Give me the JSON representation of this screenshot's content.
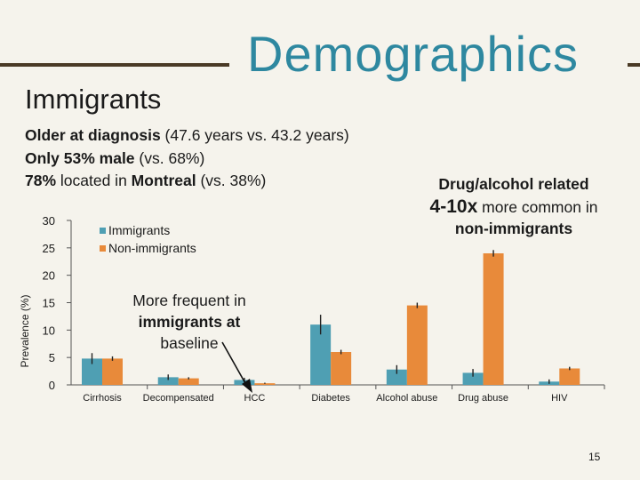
{
  "slide": {
    "title": "Demographics",
    "subtitle": "Immigrants",
    "bullets": [
      {
        "bold": "Older at diagnosis",
        "rest": " (47.6 years vs. 43.2 years)"
      },
      {
        "bold": "Only 53% male",
        "rest": " (vs. 68%)"
      },
      {
        "bold": "78%",
        "mid": " located in ",
        "bold2": "Montreal",
        "rest": " (vs. 38%)"
      }
    ],
    "callout_right": {
      "line1": "Drug/alcohol related",
      "line2_big": "4-10x",
      "line2_rest": " more common in",
      "line3": "non-immigrants"
    },
    "callout_mid": {
      "text1": "More frequent in",
      "bold": "immigrants",
      "text2": " at",
      "text3": "baseline"
    },
    "page_number": "15"
  },
  "colors": {
    "immigrants": "#4f9fb3",
    "non_immigrants": "#e88a3a",
    "title": "#2e88a0",
    "rule": "#4a3a26",
    "background": "#f5f3ec"
  },
  "chart_data": {
    "type": "bar",
    "ylabel": "Prevalence (%)",
    "xlabel": "",
    "ylim": [
      0,
      30
    ],
    "yticks": [
      0,
      5,
      10,
      15,
      20,
      25,
      30
    ],
    "legend_position": "top-left",
    "categories": [
      "Cirrhosis",
      "Decompensated",
      "HCC",
      "Diabetes",
      "Alcohol abuse",
      "Drug abuse",
      "HIV"
    ],
    "series": [
      {
        "name": "Immigrants",
        "values": [
          4.8,
          1.4,
          0.9,
          11.0,
          2.8,
          2.2,
          0.6
        ],
        "errors": [
          1.0,
          0.5,
          0.4,
          1.8,
          0.8,
          0.7,
          0.4
        ]
      },
      {
        "name": "Non-immigrants",
        "values": [
          4.8,
          1.2,
          0.3,
          6.0,
          14.5,
          24.0,
          3.0
        ],
        "errors": [
          0.4,
          0.2,
          0.1,
          0.4,
          0.5,
          0.6,
          0.3
        ]
      }
    ]
  }
}
